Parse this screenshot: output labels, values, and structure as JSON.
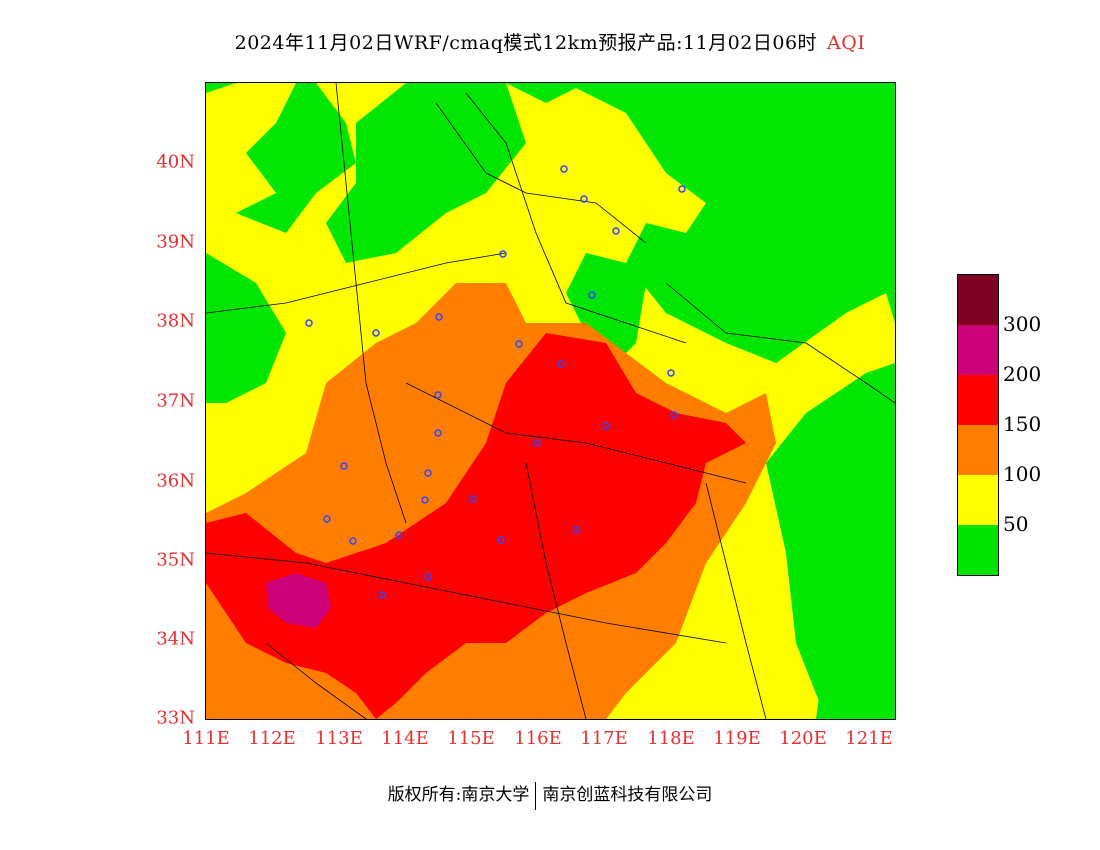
{
  "title": "2024年11月02日WRF/cmaq模式12km预报产品:11月02日06时",
  "title_tag": "AQI",
  "lat_labels": [
    "40N",
    "39N",
    "38N",
    "37N",
    "36N",
    "35N",
    "34N",
    "33N"
  ],
  "lon_labels": [
    "111E",
    "112E",
    "113E",
    "114E",
    "115E",
    "116E",
    "117E",
    "118E",
    "119E",
    "120E",
    "121E"
  ],
  "legend": {
    "colors": [
      "#7e0023",
      "#cc0077",
      "#ff0000",
      "#ff7e00",
      "#ffff00",
      "#00e400"
    ],
    "labels": [
      "300",
      "200",
      "150",
      "100",
      "50"
    ]
  },
  "footer": {
    "left": "版权所有:南京大学",
    "right": "南京创蓝科技有限公司"
  }
}
